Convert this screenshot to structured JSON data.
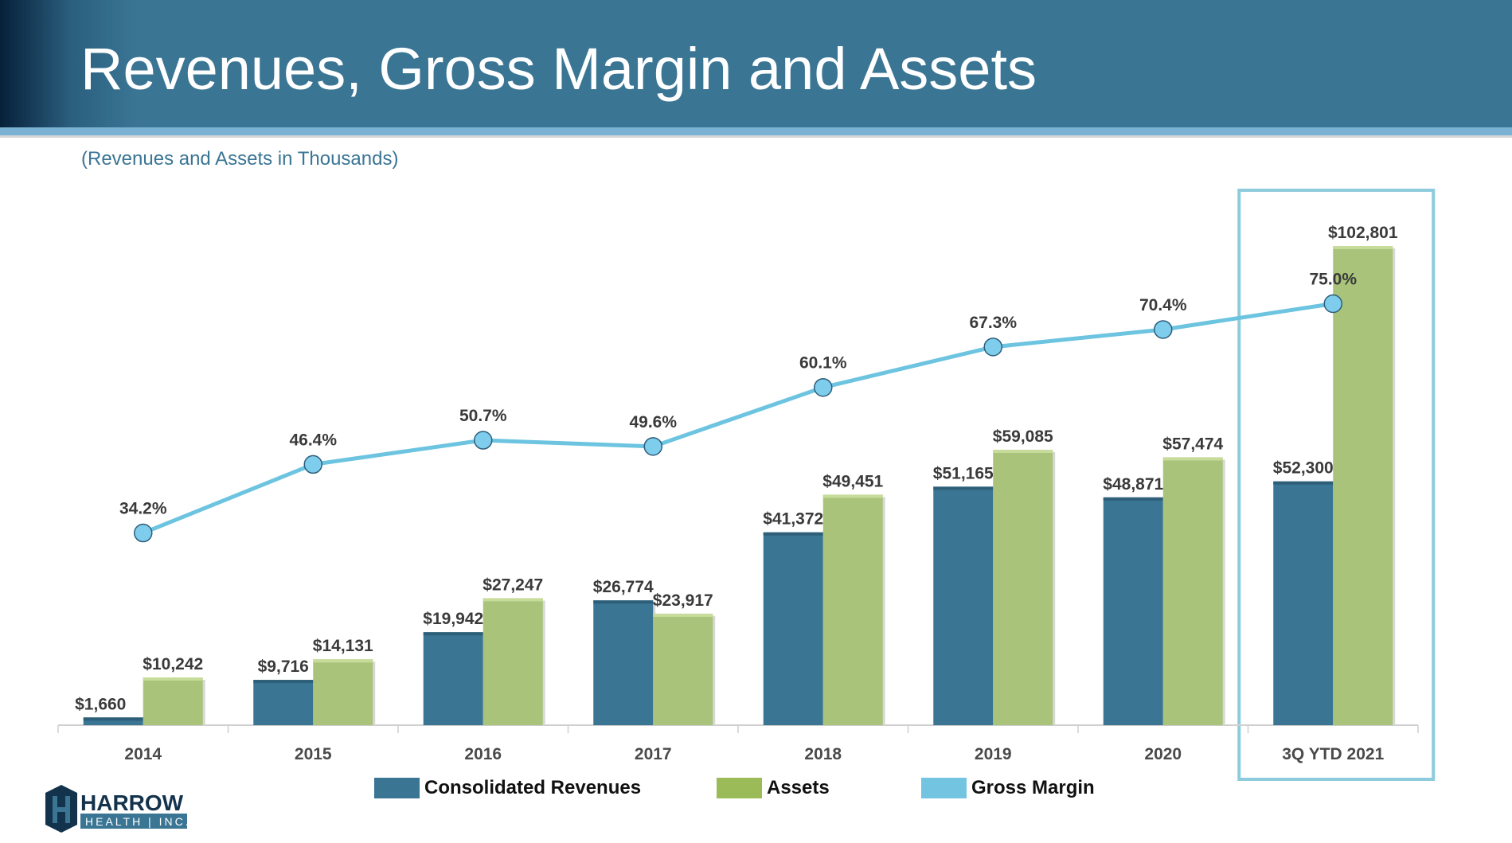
{
  "header": {
    "title": "Revenues, Gross Margin and Assets"
  },
  "subtitle": "(Revenues and Assets in Thousands)",
  "chart_data": {
    "type": "bar",
    "categories": [
      "2014",
      "2015",
      "2016",
      "2017",
      "2018",
      "2019",
      "2020",
      "3Q YTD 2021"
    ],
    "series": [
      {
        "name": "Consolidated Revenues",
        "type": "bar",
        "color": "#3a7594",
        "values": [
          1660,
          9716,
          19942,
          26774,
          41372,
          51165,
          48871,
          52300
        ],
        "labels": [
          "$1,660",
          "$9,716",
          "$19,942",
          "$26,774",
          "$41,372",
          "$51,165",
          "$48,871",
          "$52,300"
        ]
      },
      {
        "name": "Assets",
        "type": "bar",
        "color": "#a9c47a",
        "values": [
          10242,
          14131,
          27247,
          23917,
          49451,
          59085,
          57474,
          102801
        ],
        "labels": [
          "$10,242",
          "$14,131",
          "$27,247",
          "$23,917",
          "$49,451",
          "$59,085",
          "$57,474",
          "$102,801"
        ]
      },
      {
        "name": "Gross Margin",
        "type": "line",
        "color": "#6cc4e0",
        "values": [
          34.2,
          46.4,
          50.7,
          49.6,
          60.1,
          67.3,
          70.4,
          75.0
        ],
        "labels": [
          "34.2%",
          "46.4%",
          "50.7%",
          "49.6%",
          "60.1%",
          "67.3%",
          "70.4%",
          "75.0%"
        ]
      }
    ],
    "highlighted_category": "3Q YTD 2021",
    "highlight_color": "#8ecbdc",
    "legend_placement": "bottom",
    "grid": false
  },
  "legend": [
    {
      "label": "Consolidated Revenues",
      "color": "#3a7594"
    },
    {
      "label": "Assets",
      "color": "#9bbb59"
    },
    {
      "label": "Gross Margin",
      "color": "#72c4e0"
    }
  ],
  "logo": {
    "name": "HARROW",
    "sub": "HEALTH | INC."
  }
}
